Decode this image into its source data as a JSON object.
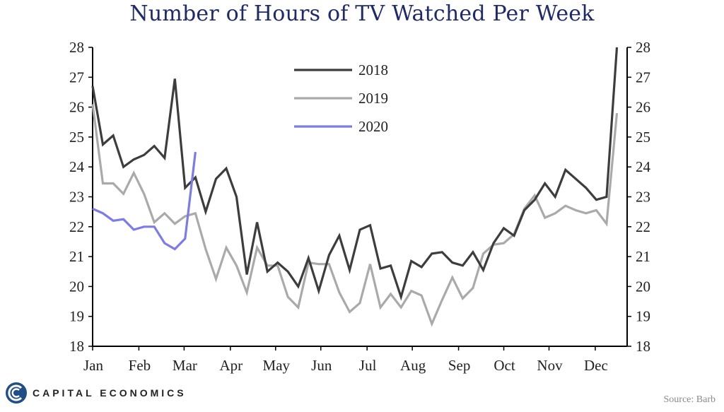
{
  "title": "Number of Hours of TV Watched Per Week",
  "source": "Source: Barb",
  "brand": "CAPITAL ECONOMICS",
  "colors": {
    "s2018": "#3d3d3d",
    "s2019": "#aaaaaa",
    "s2020": "#7b7bea",
    "axis": "#000000",
    "title": "#1f2a6b"
  },
  "chart_data": {
    "type": "line",
    "title": "Number of Hours of TV Watched Per Week",
    "xlabel": "",
    "ylabel": "",
    "ylim": [
      18,
      28
    ],
    "yticks": [
      18,
      19,
      20,
      21,
      22,
      23,
      24,
      25,
      26,
      27,
      28
    ],
    "x_range_weeks": [
      1,
      53
    ],
    "month_ticks": [
      "Jan",
      "Feb",
      "Mar",
      "Apr",
      "May",
      "Jun",
      "Jul",
      "Aug",
      "Sep",
      "Oct",
      "Nov",
      "Dec"
    ],
    "month_week_positions": [
      1,
      5.5,
      9.9,
      14.4,
      18.8,
      23.2,
      27.7,
      32.1,
      36.6,
      41,
      45.4,
      49.9
    ],
    "grid": false,
    "legend_position": "top-center",
    "series": [
      {
        "name": "2018",
        "color_key": "s2018",
        "values": [
          26.7,
          24.75,
          25.05,
          24.0,
          24.25,
          24.4,
          24.7,
          24.3,
          26.95,
          23.3,
          23.65,
          22.5,
          23.6,
          23.95,
          23.0,
          20.4,
          22.15,
          20.5,
          20.8,
          20.5,
          20.0,
          20.95,
          19.85,
          21.05,
          21.7,
          20.55,
          21.9,
          22.05,
          20.6,
          20.7,
          19.65,
          20.85,
          20.65,
          21.1,
          21.15,
          20.8,
          20.7,
          21.15,
          20.55,
          21.45,
          21.95,
          21.7,
          22.55,
          22.9,
          23.45,
          23.0,
          23.9,
          23.6,
          23.3,
          22.9,
          23.0,
          28.0
        ]
      },
      {
        "name": "2019",
        "color_key": "s2019",
        "values": [
          26.1,
          23.45,
          23.45,
          23.1,
          23.8,
          23.1,
          22.15,
          22.45,
          22.1,
          22.35,
          22.45,
          21.25,
          20.25,
          21.3,
          20.7,
          19.8,
          21.3,
          20.7,
          20.7,
          19.65,
          19.3,
          20.8,
          20.75,
          20.75,
          19.8,
          19.15,
          19.45,
          20.75,
          19.3,
          19.75,
          19.3,
          19.85,
          19.7,
          18.75,
          19.55,
          20.3,
          19.6,
          19.95,
          21.1,
          21.4,
          21.45,
          21.75,
          22.6,
          23.05,
          22.3,
          22.45,
          22.7,
          22.55,
          22.45,
          22.55,
          22.1,
          25.8
        ]
      },
      {
        "name": "2020",
        "color_key": "s2020",
        "values": [
          22.6,
          22.45,
          22.2,
          22.25,
          21.9,
          22.0,
          22.0,
          21.45,
          21.25,
          21.6,
          24.5
        ]
      }
    ]
  }
}
